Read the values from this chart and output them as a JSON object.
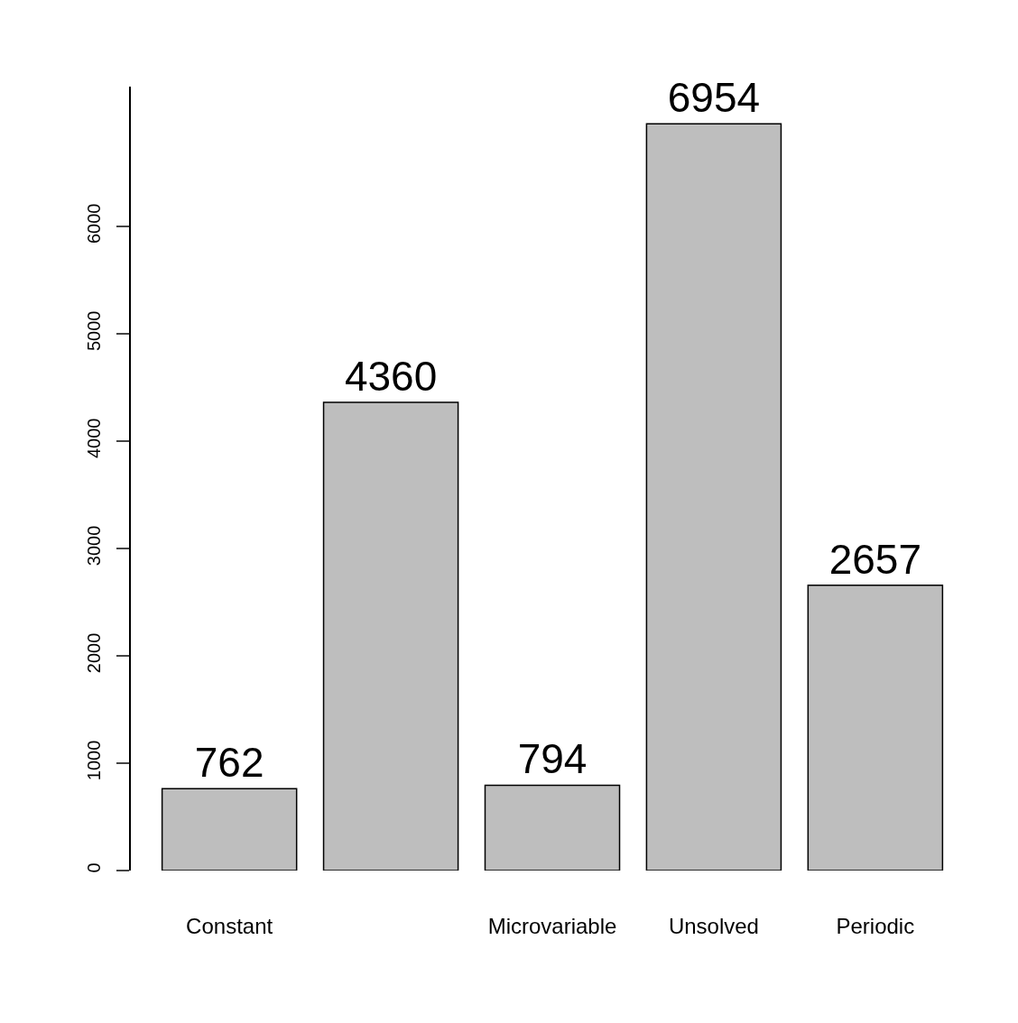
{
  "chart_data": {
    "type": "bar",
    "categories": [
      "Constant",
      null,
      "Microvariable",
      "Unsolved",
      "Periodic"
    ],
    "values": [
      762,
      4360,
      794,
      6954,
      2657
    ],
    "color": "#bebebe",
    "ylim": [
      0,
      7300
    ],
    "yticks": [
      0,
      1000,
      2000,
      3000,
      4000,
      5000,
      6000
    ],
    "data_labels": true
  }
}
